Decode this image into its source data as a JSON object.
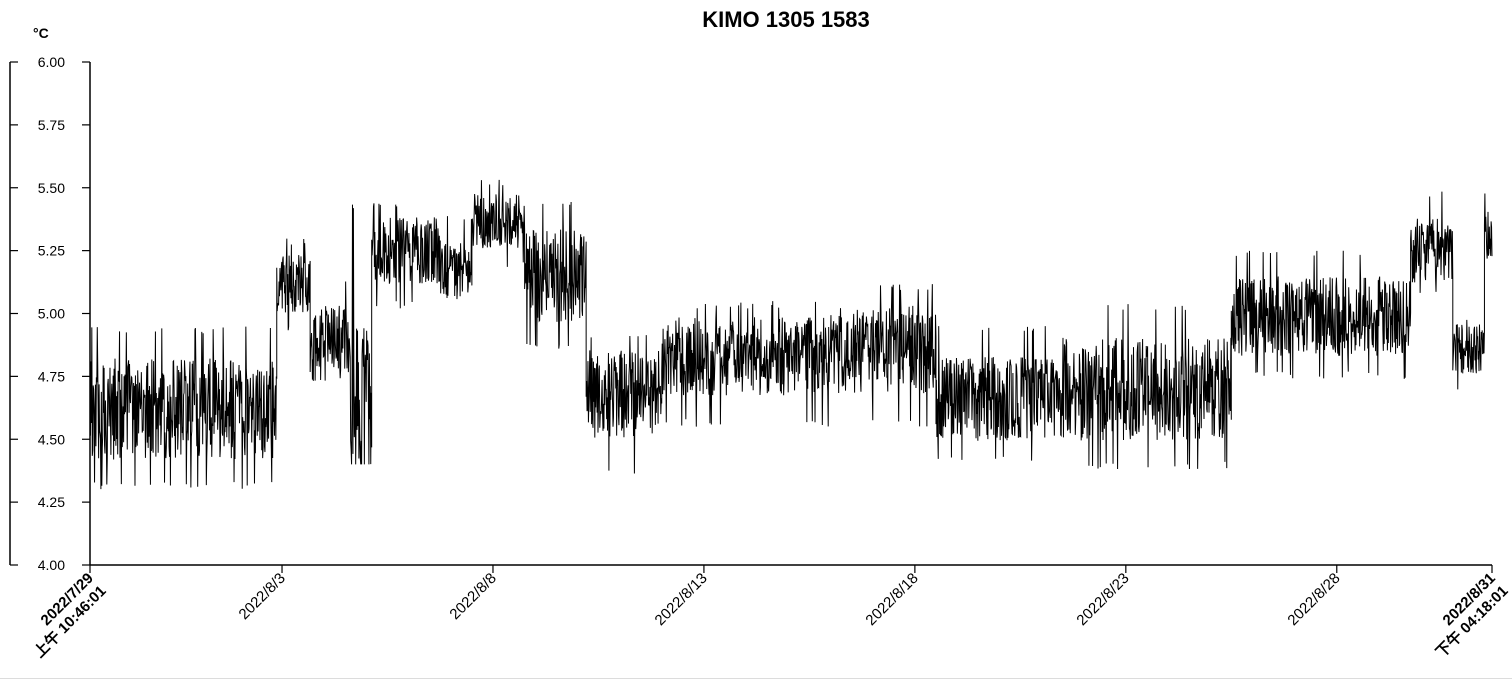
{
  "chart_data": {
    "type": "line",
    "title": "KIMO 1305 1583",
    "ylabel": "°C",
    "ylim": [
      4.0,
      6.0
    ],
    "yticks": [
      "4.00",
      "4.25",
      "4.50",
      "4.75",
      "5.00",
      "5.25",
      "5.50",
      "5.75",
      "6.00"
    ],
    "xlim": [
      "2022-07-29 10:46:01",
      "2022-08-31 16:18:01"
    ],
    "xticks": [
      {
        "date": "2022-07-29 10:46:01",
        "lines": [
          "2022/7/29",
          "上午 10:46:01"
        ],
        "bold": true
      },
      {
        "date": "2022-08-03 00:00:00",
        "lines": [
          "2022/8/3"
        ],
        "bold": false
      },
      {
        "date": "2022-08-08 00:00:00",
        "lines": [
          "2022/8/8"
        ],
        "bold": false
      },
      {
        "date": "2022-08-13 00:00:00",
        "lines": [
          "2022/8/13"
        ],
        "bold": false
      },
      {
        "date": "2022-08-18 00:00:00",
        "lines": [
          "2022/8/18"
        ],
        "bold": false
      },
      {
        "date": "2022-08-23 00:00:00",
        "lines": [
          "2022/8/23"
        ],
        "bold": false
      },
      {
        "date": "2022-08-28 00:00:00",
        "lines": [
          "2022/8/28"
        ],
        "bold": false
      },
      {
        "date": "2022-08-31 16:18:01",
        "lines": [
          "2022/8/31",
          "下午 04:18:01"
        ],
        "bold": true
      }
    ],
    "grid": false,
    "series": [
      {
        "color": "#000000",
        "segments": [
          {
            "start": "2022-07-29 10:46",
            "end": "2022-08-02 21:00",
            "mean": 4.62,
            "min": 4.3,
            "max": 4.95
          },
          {
            "start": "2022-08-02 21:00",
            "end": "2022-08-03 16:00",
            "mean": 5.12,
            "min": 4.92,
            "max": 5.3
          },
          {
            "start": "2022-08-03 16:00",
            "end": "2022-08-04 14:00",
            "mean": 4.9,
            "min": 4.72,
            "max": 5.15
          },
          {
            "start": "2022-08-04 14:00",
            "end": "2022-08-05 03:00",
            "mean": 4.62,
            "min": 4.4,
            "max": 5.44
          },
          {
            "start": "2022-08-05 03:00",
            "end": "2022-08-06 18:00",
            "mean": 5.25,
            "min": 5.02,
            "max": 5.45
          },
          {
            "start": "2022-08-06 18:00",
            "end": "2022-08-07 12:00",
            "mean": 5.18,
            "min": 5.04,
            "max": 5.4
          },
          {
            "start": "2022-08-07 12:00",
            "end": "2022-08-08 18:00",
            "mean": 5.37,
            "min": 5.18,
            "max": 5.54
          },
          {
            "start": "2022-08-08 18:00",
            "end": "2022-08-10 05:00",
            "mean": 5.15,
            "min": 4.85,
            "max": 5.45
          },
          {
            "start": "2022-08-10 05:00",
            "end": "2022-08-12 00:00",
            "mean": 4.68,
            "min": 4.36,
            "max": 4.92
          },
          {
            "start": "2022-08-12 00:00",
            "end": "2022-08-16 00:00",
            "mean": 4.83,
            "min": 4.55,
            "max": 5.05
          },
          {
            "start": "2022-08-16 00:00",
            "end": "2022-08-18 12:00",
            "mean": 4.86,
            "min": 4.55,
            "max": 5.12
          },
          {
            "start": "2022-08-18 12:00",
            "end": "2022-08-21 12:00",
            "mean": 4.66,
            "min": 4.41,
            "max": 4.95
          },
          {
            "start": "2022-08-21 12:00",
            "end": "2022-08-25 12:00",
            "mean": 4.7,
            "min": 4.38,
            "max": 5.04
          },
          {
            "start": "2022-08-25 12:00",
            "end": "2022-08-29 18:00",
            "mean": 4.99,
            "min": 4.74,
            "max": 5.25
          },
          {
            "start": "2022-08-29 18:00",
            "end": "2022-08-30 18:00",
            "mean": 5.25,
            "min": 5.08,
            "max": 5.49
          },
          {
            "start": "2022-08-30 18:00",
            "end": "2022-08-31 12:00",
            "mean": 4.86,
            "min": 4.68,
            "max": 5.0
          },
          {
            "start": "2022-08-31 12:00",
            "end": "2022-08-31 16:18",
            "mean": 5.3,
            "min": 5.08,
            "max": 5.48
          }
        ]
      }
    ]
  }
}
